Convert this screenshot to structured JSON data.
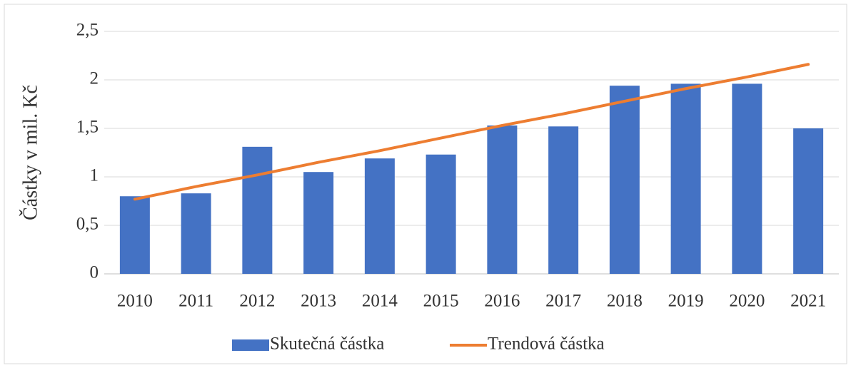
{
  "chart_data": {
    "type": "bar",
    "y_label": "Částky v mil. Kč",
    "categories": [
      "2010",
      "2011",
      "2012",
      "2013",
      "2014",
      "2015",
      "2016",
      "2017",
      "2018",
      "2019",
      "2020",
      "2021"
    ],
    "series": [
      {
        "name": "Skutečná částka",
        "type": "bar",
        "color": "#4472c4",
        "values": [
          0.8,
          0.83,
          1.31,
          1.05,
          1.19,
          1.23,
          1.53,
          1.52,
          1.94,
          1.96,
          1.96,
          1.5
        ]
      },
      {
        "name": "Trendová částka",
        "type": "line",
        "color": "#ed7d31",
        "values": [
          0.77,
          0.9,
          1.02,
          1.15,
          1.27,
          1.4,
          1.53,
          1.65,
          1.78,
          1.91,
          2.03,
          2.16
        ]
      }
    ],
    "ylim": [
      0,
      2.5
    ],
    "yticks": [
      0,
      {
        "value": 0.5,
        "label": "0,5"
      },
      1,
      {
        "value": 1.5,
        "label": "1,5"
      },
      2,
      {
        "value": 2.5,
        "label": "2,5"
      }
    ],
    "grid": true,
    "legend": "bottom"
  }
}
